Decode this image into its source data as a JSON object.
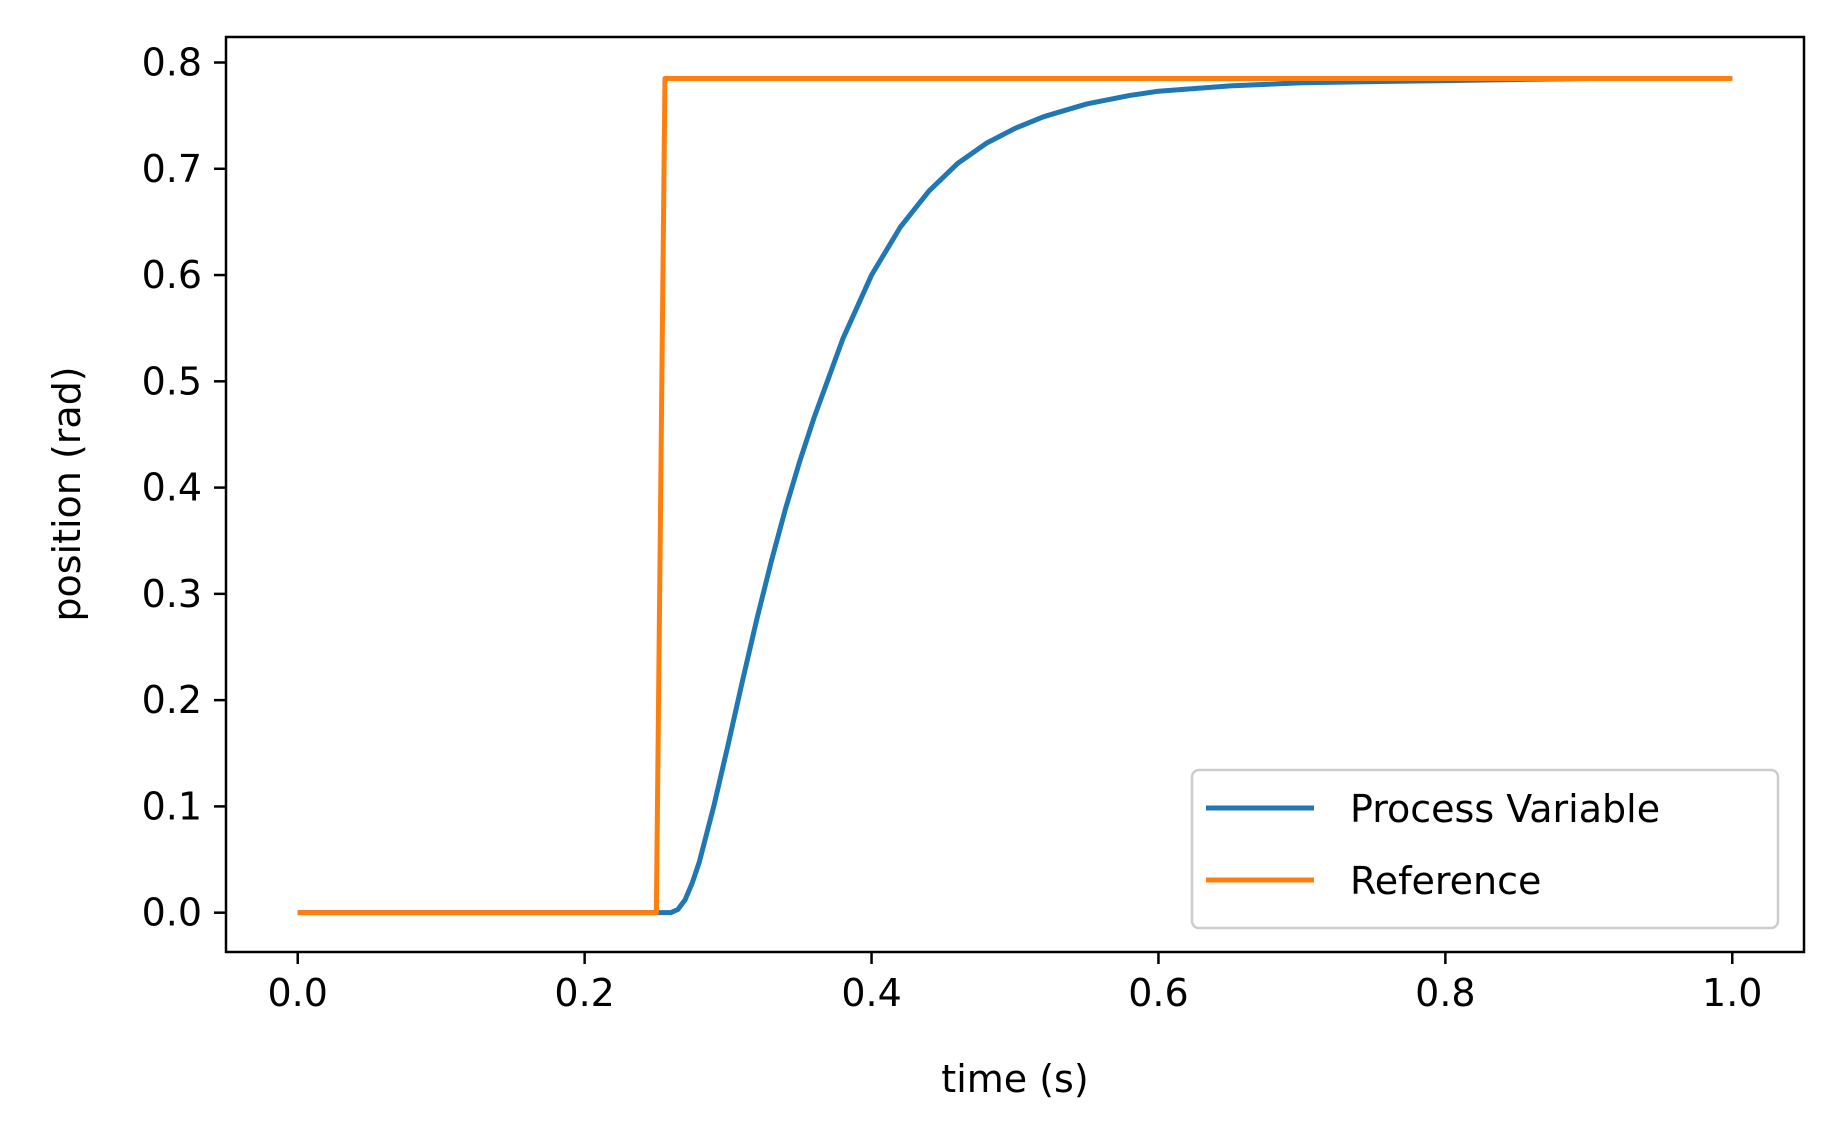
{
  "chart_data": {
    "type": "line",
    "title": "",
    "xlabel": "time (s)",
    "ylabel": "position (rad)",
    "xlim": [
      -0.05,
      1.05
    ],
    "ylim": [
      -0.037,
      0.824
    ],
    "xticks": [
      0.0,
      0.2,
      0.4,
      0.6,
      0.8,
      1.0
    ],
    "xtick_labels": [
      "0.0",
      "0.2",
      "0.4",
      "0.6",
      "0.8",
      "1.0"
    ],
    "yticks": [
      0.0,
      0.1,
      0.2,
      0.3,
      0.4,
      0.5,
      0.6,
      0.7,
      0.8
    ],
    "ytick_labels": [
      "0.0",
      "0.1",
      "0.2",
      "0.3",
      "0.4",
      "0.5",
      "0.6",
      "0.7",
      "0.8"
    ],
    "grid": false,
    "legend_position": "lower-right",
    "series": [
      {
        "name": "Process Variable",
        "color": "#1f77b4",
        "x": [
          0.0,
          0.1,
          0.2,
          0.25,
          0.255,
          0.26,
          0.265,
          0.27,
          0.275,
          0.28,
          0.29,
          0.3,
          0.31,
          0.32,
          0.33,
          0.34,
          0.35,
          0.36,
          0.38,
          0.4,
          0.42,
          0.44,
          0.46,
          0.48,
          0.5,
          0.52,
          0.55,
          0.58,
          0.6,
          0.65,
          0.7,
          0.75,
          0.8,
          0.9,
          1.0
        ],
        "y": [
          0.0,
          0.0,
          0.0,
          0.0,
          0.0,
          0.0,
          0.003,
          0.012,
          0.028,
          0.048,
          0.1,
          0.158,
          0.218,
          0.276,
          0.33,
          0.38,
          0.425,
          0.466,
          0.54,
          0.6,
          0.645,
          0.679,
          0.705,
          0.724,
          0.738,
          0.749,
          0.761,
          0.769,
          0.773,
          0.778,
          0.781,
          0.782,
          0.783,
          0.785,
          0.785
        ]
      },
      {
        "name": "Reference",
        "color": "#ff7f0e",
        "x": [
          0.0,
          0.25,
          0.256,
          1.0
        ],
        "y": [
          0.0,
          0.0,
          0.785,
          0.785
        ]
      }
    ]
  }
}
